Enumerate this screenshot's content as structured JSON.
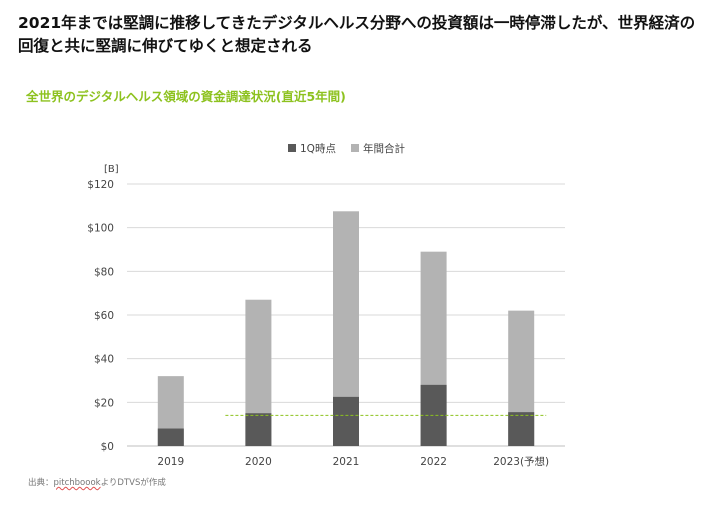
{
  "headline": "2021年までは堅調に推移してきたデジタルヘルス分野への投資額は一時停滞したが、世界経済の回復と共に堅調に伸びてゆくと想定される",
  "source": {
    "prefix": "出典：",
    "squiggle": "pitchboook",
    "suffix": "よりDTVSが作成"
  },
  "colors": {
    "accent_green": "#8dc21f",
    "q1_bar": "#595959",
    "annual_bar": "#b3b3b3",
    "reference_line": "#8dc21f"
  },
  "chart_data": {
    "type": "bar",
    "title": "全世界のデジタルヘルス領域の資金調達状況(直近5年間)",
    "unit_label": "[B]",
    "categories": [
      "2019",
      "2020",
      "2021",
      "2022",
      "2023(予想)"
    ],
    "series": [
      {
        "name": "1Q時点",
        "values": [
          8,
          15,
          22.5,
          28,
          15.5
        ]
      },
      {
        "name": "年間合計",
        "values": [
          32,
          67,
          107.5,
          89,
          62
        ]
      }
    ],
    "y_ticks": [
      "$0",
      "$20",
      "$40",
      "$60",
      "$80",
      "$100",
      "$120"
    ],
    "ylim": [
      0,
      120
    ],
    "reference_line": {
      "value": 14,
      "from_category": "2020",
      "to_category": "2023(予想)",
      "style": "dashed"
    },
    "legend_position": "top-center",
    "grid": true
  }
}
